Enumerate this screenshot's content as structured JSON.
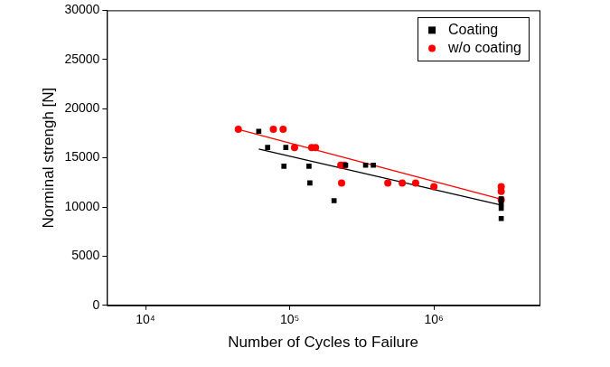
{
  "chart_data": {
    "type": "scatter",
    "x_label": "Number of Cycles to Failure",
    "y_label": "Norminal strengh [N]",
    "log": "x",
    "grid": false,
    "legend": "upper right",
    "xlim": [
      5400,
      5400000
    ],
    "ylim": [
      0,
      30000
    ],
    "xticks": [
      {
        "value": 10000,
        "label": "10⁴"
      },
      {
        "value": 100000,
        "label": "10⁵"
      },
      {
        "value": 1000000,
        "label": "10⁶"
      }
    ],
    "yticks": [
      0,
      5000,
      10000,
      15000,
      20000,
      25000,
      30000
    ],
    "series": [
      {
        "name": "Coating",
        "color": "#000000",
        "marker": "square",
        "x": [
          61000,
          70300,
          94000,
          91200,
          136000,
          138000,
          203000,
          244000,
          336000,
          380000,
          2930000,
          2930000,
          2930000,
          2930000
        ],
        "values": [
          17700,
          16050,
          16050,
          14150,
          14150,
          12440,
          10640,
          14250,
          14250,
          14250,
          10830,
          10350,
          9880,
          8830
        ]
      },
      {
        "name": "w/o coating",
        "color": "#ff0000",
        "marker": "circle",
        "x": [
          44000,
          77000,
          90000,
          108000,
          142000,
          151000,
          226000,
          240000,
          229000,
          479000,
          603000,
          747000,
          1000000,
          2930000,
          2930000,
          2930000
        ],
        "values": [
          17900,
          17900,
          17900,
          16050,
          16050,
          16050,
          14250,
          14250,
          12440,
          12440,
          12440,
          12440,
          12060,
          12060,
          11590,
          10730
        ]
      },
      {
        "type": "line",
        "color": "#000000",
        "line_style": "solid",
        "x": [
          61000,
          2930000
        ],
        "values": [
          15900,
          10200
        ]
      },
      {
        "type": "line",
        "color": "#ff0000",
        "line_style": "solid",
        "x": [
          44000,
          2930000
        ],
        "values": [
          17900,
          10800
        ]
      }
    ]
  }
}
